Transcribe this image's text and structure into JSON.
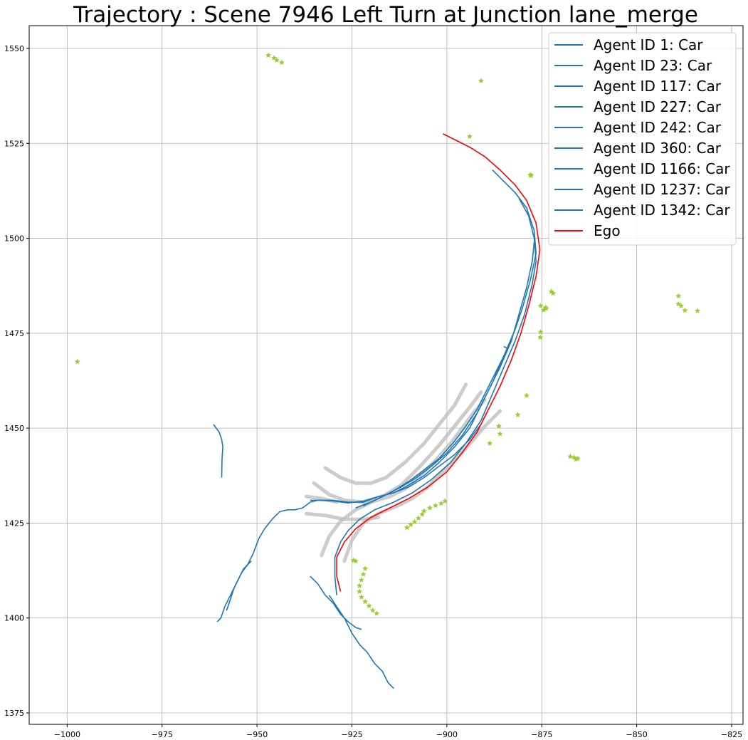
{
  "chart_data": {
    "type": "line",
    "title": "Trajectory : Scene 7946 Left Turn at Junction lane_merge",
    "xlabel": "",
    "ylabel": "",
    "xlim": [
      -1010,
      -822
    ],
    "ylim": [
      1372,
      1556
    ],
    "xticks": [
      -1000,
      -975,
      -950,
      -925,
      -900,
      -875,
      -850,
      -825
    ],
    "yticks": [
      1375,
      1400,
      1425,
      1450,
      1475,
      1500,
      1525,
      1550
    ],
    "xtick_labels": [
      "−1000",
      "−975",
      "−950",
      "−925",
      "−900",
      "−875",
      "−850",
      "−825"
    ],
    "ytick_labels": [
      "1375",
      "1400",
      "1425",
      "1450",
      "1475",
      "1500",
      "1525",
      "1550"
    ],
    "grid": true,
    "legend_position": "top-right",
    "colors": {
      "agent": "#1f77b4",
      "ego": "#ff0000",
      "lane": "#bbbbbb",
      "star": "#9acd32"
    },
    "series": [
      {
        "name": "Agent ID 1: Car",
        "kind": "agent",
        "points": [
          [
            -961.5,
            1451
          ],
          [
            -960,
            1449
          ],
          [
            -959.3,
            1447
          ],
          [
            -959,
            1445
          ],
          [
            -959.2,
            1442
          ],
          [
            -959.3,
            1437
          ]
        ]
      },
      {
        "name": "Agent ID 23: Car",
        "kind": "agent",
        "points": [
          [
            -960.5,
            1399
          ],
          [
            -959.5,
            1400
          ],
          [
            -958.5,
            1403
          ],
          [
            -957,
            1406
          ],
          [
            -955.5,
            1409
          ],
          [
            -954,
            1412
          ],
          [
            -952.5,
            1414
          ],
          [
            -951,
            1417
          ],
          [
            -949.5,
            1421
          ],
          [
            -948,
            1423.5
          ],
          [
            -946,
            1426
          ],
          [
            -944,
            1428
          ],
          [
            -942,
            1428.5
          ],
          [
            -940,
            1428.5
          ],
          [
            -938,
            1429
          ],
          [
            -936,
            1430.5
          ],
          [
            -934,
            1431
          ],
          [
            -930,
            1430.8
          ],
          [
            -926,
            1430.3
          ],
          [
            -922,
            1430.8
          ],
          [
            -918,
            1432
          ],
          [
            -914,
            1433
          ],
          [
            -910,
            1434.5
          ],
          [
            -906,
            1437
          ],
          [
            -902,
            1440
          ],
          [
            -898,
            1443
          ],
          [
            -894,
            1447
          ],
          [
            -891,
            1451
          ]
        ]
      },
      {
        "name": "Agent ID 117: Car",
        "kind": "agent",
        "points": [
          [
            -958,
            1402
          ],
          [
            -957,
            1405
          ],
          [
            -956,
            1408
          ],
          [
            -955,
            1410
          ],
          [
            -953.5,
            1413
          ],
          [
            -952.5,
            1414
          ],
          [
            -951.5,
            1415
          ]
        ]
      },
      {
        "name": "Agent ID 227: Car",
        "kind": "agent",
        "points": [
          [
            -936,
            1411
          ],
          [
            -934,
            1409
          ],
          [
            -932,
            1406
          ],
          [
            -930,
            1404
          ],
          [
            -928,
            1401
          ],
          [
            -926,
            1399
          ],
          [
            -924,
            1397.5
          ],
          [
            -922.5,
            1397
          ]
        ]
      },
      {
        "name": "Agent ID 242: Car",
        "kind": "agent",
        "points": [
          [
            -931,
            1406
          ],
          [
            -929,
            1403
          ],
          [
            -927,
            1400
          ],
          [
            -925,
            1396
          ],
          [
            -923,
            1393
          ],
          [
            -921,
            1391
          ],
          [
            -919,
            1388
          ],
          [
            -917,
            1386
          ],
          [
            -915.5,
            1383
          ],
          [
            -914,
            1381.5
          ]
        ]
      },
      {
        "name": "Agent ID 360: Car",
        "kind": "agent",
        "points": [
          [
            -922,
            1429.5
          ],
          [
            -918,
            1431.5
          ],
          [
            -914,
            1433.5
          ],
          [
            -910,
            1436
          ],
          [
            -906,
            1439
          ],
          [
            -902,
            1442
          ],
          [
            -898,
            1446.5
          ],
          [
            -895,
            1450.5
          ],
          [
            -892,
            1455
          ],
          [
            -889,
            1461
          ],
          [
            -886,
            1467
          ],
          [
            -884,
            1471
          ],
          [
            -885,
            1471.5
          ]
        ]
      },
      {
        "name": "Agent ID 1166: Car",
        "kind": "agent",
        "points": [
          [
            -936,
            1431
          ],
          [
            -930,
            1431
          ],
          [
            -926,
            1430.5
          ],
          [
            -922,
            1430.5
          ],
          [
            -918,
            1432
          ],
          [
            -914,
            1433
          ],
          [
            -910,
            1435
          ],
          [
            -906,
            1437.5
          ],
          [
            -902,
            1441
          ],
          [
            -898,
            1445
          ],
          [
            -894,
            1450
          ],
          [
            -891,
            1456
          ],
          [
            -888,
            1462
          ],
          [
            -885,
            1469
          ],
          [
            -882,
            1476
          ],
          [
            -880,
            1482
          ],
          [
            -878,
            1489
          ],
          [
            -876.5,
            1496
          ],
          [
            -877,
            1502
          ],
          [
            -879,
            1508
          ],
          [
            -882,
            1512
          ],
          [
            -885.5,
            1515.5
          ],
          [
            -888,
            1518
          ]
        ]
      },
      {
        "name": "Agent ID 1237: Car",
        "kind": "agent",
        "points": [
          [
            -929,
            1406
          ],
          [
            -929.5,
            1411
          ],
          [
            -929.5,
            1416
          ],
          [
            -928,
            1420
          ],
          [
            -926,
            1423
          ],
          [
            -923,
            1426
          ],
          [
            -919,
            1428.5
          ],
          [
            -914,
            1430.5
          ],
          [
            -909,
            1433
          ],
          [
            -904,
            1436.5
          ],
          [
            -899,
            1441
          ],
          [
            -895,
            1446
          ],
          [
            -891,
            1452
          ],
          [
            -888,
            1459
          ],
          [
            -885,
            1466
          ],
          [
            -882,
            1473
          ],
          [
            -879.5,
            1480
          ],
          [
            -877.5,
            1488
          ],
          [
            -876.5,
            1494
          ],
          [
            -877,
            1500
          ],
          [
            -878.5,
            1506
          ],
          [
            -881,
            1510.5
          ]
        ]
      },
      {
        "name": "Agent ID 1342: Car",
        "kind": "agent",
        "points": [
          [
            -924,
            1429
          ],
          [
            -920,
            1430.5
          ],
          [
            -916,
            1432.5
          ],
          [
            -912,
            1434.5
          ],
          [
            -908,
            1437
          ],
          [
            -904,
            1440
          ],
          [
            -900,
            1443.5
          ],
          [
            -896,
            1448
          ],
          [
            -892,
            1454
          ],
          [
            -889,
            1460
          ],
          [
            -886,
            1466
          ],
          [
            -883,
            1473
          ],
          [
            -881,
            1480
          ],
          [
            -879,
            1487
          ],
          [
            -877.5,
            1494
          ],
          [
            -877,
            1499
          ]
        ]
      },
      {
        "name": "Ego",
        "kind": "ego",
        "points": [
          [
            -928,
            1407
          ],
          [
            -929,
            1411
          ],
          [
            -929,
            1416
          ],
          [
            -927,
            1420
          ],
          [
            -924,
            1423.5
          ],
          [
            -920,
            1426.5
          ],
          [
            -915,
            1429
          ],
          [
            -910,
            1431.5
          ],
          [
            -905,
            1434.5
          ],
          [
            -900,
            1438.5
          ],
          [
            -896,
            1443.5
          ],
          [
            -892,
            1449
          ],
          [
            -889,
            1455
          ],
          [
            -886,
            1461
          ],
          [
            -883,
            1468
          ],
          [
            -880.5,
            1475
          ],
          [
            -878.5,
            1482
          ],
          [
            -876.5,
            1490
          ],
          [
            -875.5,
            1497
          ],
          [
            -876.5,
            1504
          ],
          [
            -879,
            1510
          ],
          [
            -882,
            1514
          ],
          [
            -886,
            1518
          ],
          [
            -890,
            1521.5
          ],
          [
            -894,
            1524
          ],
          [
            -898,
            1526
          ],
          [
            -901,
            1527.5
          ]
        ]
      }
    ],
    "lane_paths": [
      [
        [
          -932,
          1439.5
        ],
        [
          -928,
          1437
        ],
        [
          -924,
          1435.5
        ],
        [
          -920,
          1435.5
        ],
        [
          -916,
          1437
        ],
        [
          -911,
          1441
        ],
        [
          -906,
          1446
        ],
        [
          -902,
          1451
        ],
        [
          -898,
          1456
        ],
        [
          -895,
          1461.5
        ]
      ],
      [
        [
          -935,
          1435.5
        ],
        [
          -931,
          1432.5
        ],
        [
          -927,
          1431
        ],
        [
          -922,
          1430.5
        ],
        [
          -917,
          1432
        ],
        [
          -912,
          1435
        ],
        [
          -907,
          1440
        ],
        [
          -902,
          1445.5
        ],
        [
          -898,
          1450.5
        ],
        [
          -894,
          1455.5
        ],
        [
          -891,
          1459.5
        ]
      ],
      [
        [
          -937,
          1432
        ],
        [
          -933,
          1431.5
        ],
        [
          -929,
          1430.5
        ]
      ],
      [
        [
          -937,
          1427.5
        ],
        [
          -932,
          1427
        ],
        [
          -927,
          1426
        ],
        [
          -922,
          1426
        ],
        [
          -918,
          1426.5
        ]
      ],
      [
        [
          -933,
          1416.5
        ],
        [
          -931,
          1421.5
        ],
        [
          -928,
          1425.5
        ],
        [
          -924,
          1428.5
        ],
        [
          -920,
          1430.5
        ],
        [
          -915,
          1432
        ],
        [
          -911,
          1434
        ],
        [
          -907,
          1437.5
        ],
        [
          -903,
          1441.5
        ],
        [
          -899,
          1446
        ],
        [
          -896,
          1450
        ],
        [
          -893,
          1454
        ],
        [
          -890,
          1457.5
        ]
      ],
      [
        [
          -927,
          1415
        ],
        [
          -925,
          1420.5
        ],
        [
          -922,
          1425
        ],
        [
          -918,
          1427.5
        ],
        [
          -913,
          1429.5
        ],
        [
          -909,
          1431.5
        ],
        [
          -905,
          1434.5
        ],
        [
          -901,
          1438.5
        ],
        [
          -897,
          1442.5
        ],
        [
          -893,
          1447
        ],
        [
          -890,
          1450.5
        ],
        [
          -886,
          1454.5
        ]
      ]
    ],
    "star_markers": [
      [
        -947,
        1548.2
      ],
      [
        -945.5,
        1547.5
      ],
      [
        -944.8,
        1546.9
      ],
      [
        -943.5,
        1546.3
      ],
      [
        -891,
        1541.5
      ],
      [
        -894,
        1526.8
      ],
      [
        -878,
        1516.7
      ],
      [
        -877.8,
        1516.5
      ],
      [
        -872.5,
        1486
      ],
      [
        -872,
        1485.5
      ],
      [
        -875.3,
        1482.2
      ],
      [
        -874,
        1481.8
      ],
      [
        -873.8,
        1481.5
      ],
      [
        -874.5,
        1481.1
      ],
      [
        -875.3,
        1475.3
      ],
      [
        -875.4,
        1473.9
      ],
      [
        -879,
        1458.6
      ],
      [
        -881.3,
        1453.5
      ],
      [
        -886.3,
        1450.5
      ],
      [
        -886,
        1448.5
      ],
      [
        -888.7,
        1446
      ],
      [
        -867.5,
        1442.5
      ],
      [
        -866.5,
        1442.3
      ],
      [
        -865.5,
        1442
      ],
      [
        -866,
        1441.8
      ],
      [
        -839,
        1484.8
      ],
      [
        -839,
        1482.7
      ],
      [
        -838.3,
        1482.2
      ],
      [
        -837.3,
        1481
      ],
      [
        -834,
        1480.9
      ],
      [
        -997.3,
        1467.5
      ],
      [
        -924.6,
        1415.2
      ],
      [
        -924,
        1415
      ],
      [
        -910.5,
        1423.8
      ],
      [
        -909.5,
        1424.6
      ],
      [
        -908.5,
        1425.3
      ],
      [
        -907.5,
        1426.3
      ],
      [
        -906.5,
        1427.3
      ],
      [
        -906,
        1428.2
      ],
      [
        -904.5,
        1429
      ],
      [
        -903,
        1429.6
      ],
      [
        -901.5,
        1430.2
      ],
      [
        -900.5,
        1430.8
      ],
      [
        -921.5,
        1413
      ],
      [
        -922,
        1411.5
      ],
      [
        -922.5,
        1410
      ],
      [
        -923,
        1408.5
      ],
      [
        -923,
        1407
      ],
      [
        -922.5,
        1405.5
      ],
      [
        -921.5,
        1404.3
      ],
      [
        -920.5,
        1403.2
      ],
      [
        -919.5,
        1402
      ],
      [
        -918.5,
        1401.2
      ]
    ]
  }
}
